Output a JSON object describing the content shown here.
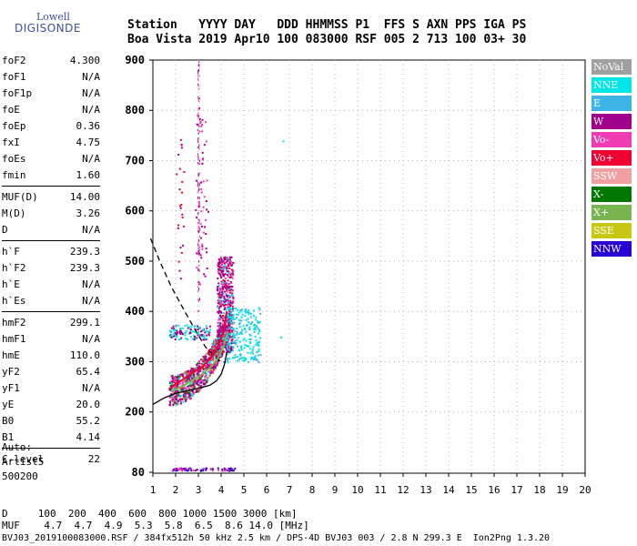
{
  "logo": {
    "line1": "Lowell",
    "line2": "DIGISONDE"
  },
  "header": {
    "row1": "Station   YYYY DAY   DDD HHMMSS P1  FFS S AXN PPS IGA PS",
    "row2": "Boa Vista 2019 Apr10 100 083000 RSF 005 2 713 100 03+ 30"
  },
  "params": [
    {
      "label": "foF2",
      "value": "4.300"
    },
    {
      "label": "foF1",
      "value": "N/A"
    },
    {
      "label": "foF1p",
      "value": "N/A"
    },
    {
      "label": "foE",
      "value": "N/A"
    },
    {
      "label": "foEp",
      "value": "0.36"
    },
    {
      "label": "fxI",
      "value": "4.75"
    },
    {
      "label": "foEs",
      "value": "N/A"
    },
    {
      "label": "fmin",
      "value": "1.60"
    },
    {
      "label": "MUF(D)",
      "value": "14.00"
    },
    {
      "label": "M(D)",
      "value": "3.26"
    },
    {
      "label": "D",
      "value": "N/A"
    },
    {
      "label": "h`F",
      "value": "239.3"
    },
    {
      "label": "h`F2",
      "value": "239.3"
    },
    {
      "label": "h`E",
      "value": "N/A"
    },
    {
      "label": "h`Es",
      "value": "N/A"
    },
    {
      "label": "hmF2",
      "value": "299.1"
    },
    {
      "label": "hmF1",
      "value": "N/A"
    },
    {
      "label": "hmE",
      "value": "110.0"
    },
    {
      "label": "yF2",
      "value": "65.4"
    },
    {
      "label": "yF1",
      "value": "N/A"
    },
    {
      "label": "yE",
      "value": "20.0"
    },
    {
      "label": "B0",
      "value": "55.2"
    },
    {
      "label": "B1",
      "value": "4.14"
    },
    {
      "label": "C-level",
      "value": "22"
    }
  ],
  "auto": [
    "Auto:",
    "Artist5",
    "500200"
  ],
  "legend": [
    {
      "label": "NoVal",
      "color": "#a0a0a0"
    },
    {
      "label": "NNE",
      "color": "#00e6e6"
    },
    {
      "label": "E",
      "color": "#3cb4e6"
    },
    {
      "label": "W",
      "color": "#a0008c"
    },
    {
      "label": "Vo-",
      "color": "#f03cb4"
    },
    {
      "label": "Vo+",
      "color": "#f00032"
    },
    {
      "label": "SSW",
      "color": "#f0a0a0"
    },
    {
      "label": "X-",
      "color": "#007800"
    },
    {
      "label": "X+",
      "color": "#78b450"
    },
    {
      "label": "SSE",
      "color": "#c8c814"
    },
    {
      "label": "NNW",
      "color": "#2800d2"
    }
  ],
  "bottom": {
    "line1": "D     100  200  400  600  800 1000 1500 3000 [km]",
    "line2": "MUF    4.7  4.7  4.9  5.3  5.8  6.5  8.6 14.0 [MHz]",
    "line3": "BVJ03_2019100083000.RSF / 384fx512h 50 kHz 2.5 km / DPS-4D BVJ03 003 / 2.8 N 299.3 E  Ion2Png 1.3.20"
  },
  "chart_data": {
    "type": "scatter",
    "xlim": [
      1,
      20
    ],
    "ylim": [
      80,
      900
    ],
    "x_ticks": [
      "1",
      "2",
      "3",
      "4",
      "5",
      "6",
      "7",
      "8",
      "9",
      "10",
      "11",
      "12",
      "13",
      "14",
      "15",
      "16",
      "17",
      "18",
      "19",
      "20"
    ],
    "y_ticks": [
      "80",
      "200",
      "300",
      "400",
      "500",
      "600",
      "700",
      "800",
      "900"
    ],
    "y_tick_values": [
      80,
      200,
      300,
      400,
      500,
      600,
      700,
      800,
      900
    ],
    "grid": true,
    "virtual_height_curve": [
      [
        1.0,
        215
      ],
      [
        1.5,
        228
      ],
      [
        2.0,
        237
      ],
      [
        2.5,
        242
      ],
      [
        3.0,
        247
      ],
      [
        3.5,
        253
      ],
      [
        3.8,
        262
      ],
      [
        4.0,
        275
      ],
      [
        4.15,
        295
      ],
      [
        4.25,
        320
      ]
    ],
    "true_height_profile": [
      [
        0.9,
        545
      ],
      [
        1.3,
        500
      ],
      [
        1.8,
        450
      ],
      [
        2.4,
        400
      ],
      [
        2.9,
        360
      ],
      [
        3.3,
        330
      ],
      [
        3.7,
        310
      ],
      [
        4.0,
        300
      ],
      [
        4.2,
        299
      ]
    ],
    "traces": [
      {
        "name": "Vo+",
        "points": [
          [
            1.7,
            245
          ],
          [
            1.9,
            252
          ],
          [
            2.1,
            258
          ],
          [
            2.3,
            264
          ],
          [
            2.5,
            270
          ],
          [
            2.7,
            276
          ],
          [
            2.9,
            282
          ],
          [
            3.1,
            288
          ],
          [
            3.3,
            296
          ],
          [
            3.5,
            305
          ],
          [
            3.7,
            318
          ],
          [
            3.9,
            335
          ],
          [
            4.1,
            360
          ],
          [
            4.25,
            400
          ]
        ]
      },
      {
        "name": "X+",
        "points": [
          [
            1.8,
            240
          ],
          [
            2.1,
            247
          ],
          [
            2.4,
            254
          ],
          [
            2.7,
            262
          ],
          [
            3.0,
            270
          ],
          [
            3.3,
            280
          ],
          [
            3.6,
            292
          ],
          [
            3.9,
            310
          ],
          [
            4.1,
            330
          ],
          [
            4.3,
            360
          ]
        ]
      }
    ]
  }
}
